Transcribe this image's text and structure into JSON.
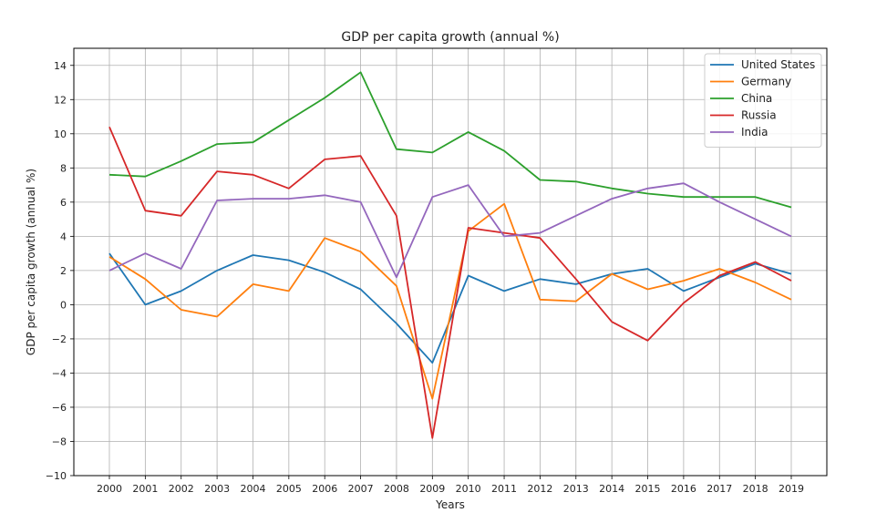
{
  "chart_data": {
    "type": "line",
    "title": "GDP per capita growth (annual %)",
    "xlabel": "Years",
    "ylabel": "GDP per capita growth (annual %)",
    "ylim": [
      -10,
      15
    ],
    "yticks": [
      -10,
      -8,
      -6,
      -4,
      -2,
      0,
      2,
      4,
      6,
      8,
      10,
      12,
      14
    ],
    "grid": true,
    "legend_position": "top-right",
    "x": [
      "2000",
      "2001",
      "2002",
      "2003",
      "2004",
      "2005",
      "2006",
      "2007",
      "2008",
      "2009",
      "2010",
      "2011",
      "2012",
      "2013",
      "2014",
      "2015",
      "2016",
      "2017",
      "2018",
      "2019"
    ],
    "series": [
      {
        "name": "United States",
        "color": "#1f77b4",
        "values": [
          3.0,
          0.0,
          0.8,
          2.0,
          2.9,
          2.6,
          1.9,
          0.9,
          -1.1,
          -3.4,
          1.7,
          0.8,
          1.5,
          1.2,
          1.8,
          2.1,
          0.8,
          1.6,
          2.4,
          1.8
        ]
      },
      {
        "name": "Germany",
        "color": "#ff7f0e",
        "values": [
          2.8,
          1.5,
          -0.3,
          -0.7,
          1.2,
          0.8,
          3.9,
          3.1,
          1.1,
          -5.5,
          4.3,
          5.9,
          0.3,
          0.2,
          1.8,
          0.9,
          1.4,
          2.1,
          1.3,
          0.3
        ]
      },
      {
        "name": "China",
        "color": "#2ca02c",
        "values": [
          7.6,
          7.5,
          8.4,
          9.4,
          9.5,
          10.8,
          12.1,
          13.6,
          9.1,
          8.9,
          10.1,
          9.0,
          7.3,
          7.2,
          6.8,
          6.5,
          6.3,
          6.3,
          6.3,
          5.7
        ]
      },
      {
        "name": "Russia",
        "color": "#d62728",
        "values": [
          10.4,
          5.5,
          5.2,
          7.8,
          7.6,
          6.8,
          8.5,
          8.7,
          5.2,
          -7.8,
          4.5,
          4.2,
          3.9,
          1.5,
          -1.0,
          -2.1,
          0.1,
          1.7,
          2.5,
          1.4
        ]
      },
      {
        "name": "India",
        "color": "#9467bd",
        "values": [
          2.0,
          3.0,
          2.1,
          6.1,
          6.2,
          6.2,
          6.4,
          6.0,
          1.6,
          6.3,
          7.0,
          4.0,
          4.2,
          5.2,
          6.2,
          6.8,
          7.1,
          6.0,
          5.0,
          4.0
        ]
      }
    ]
  }
}
